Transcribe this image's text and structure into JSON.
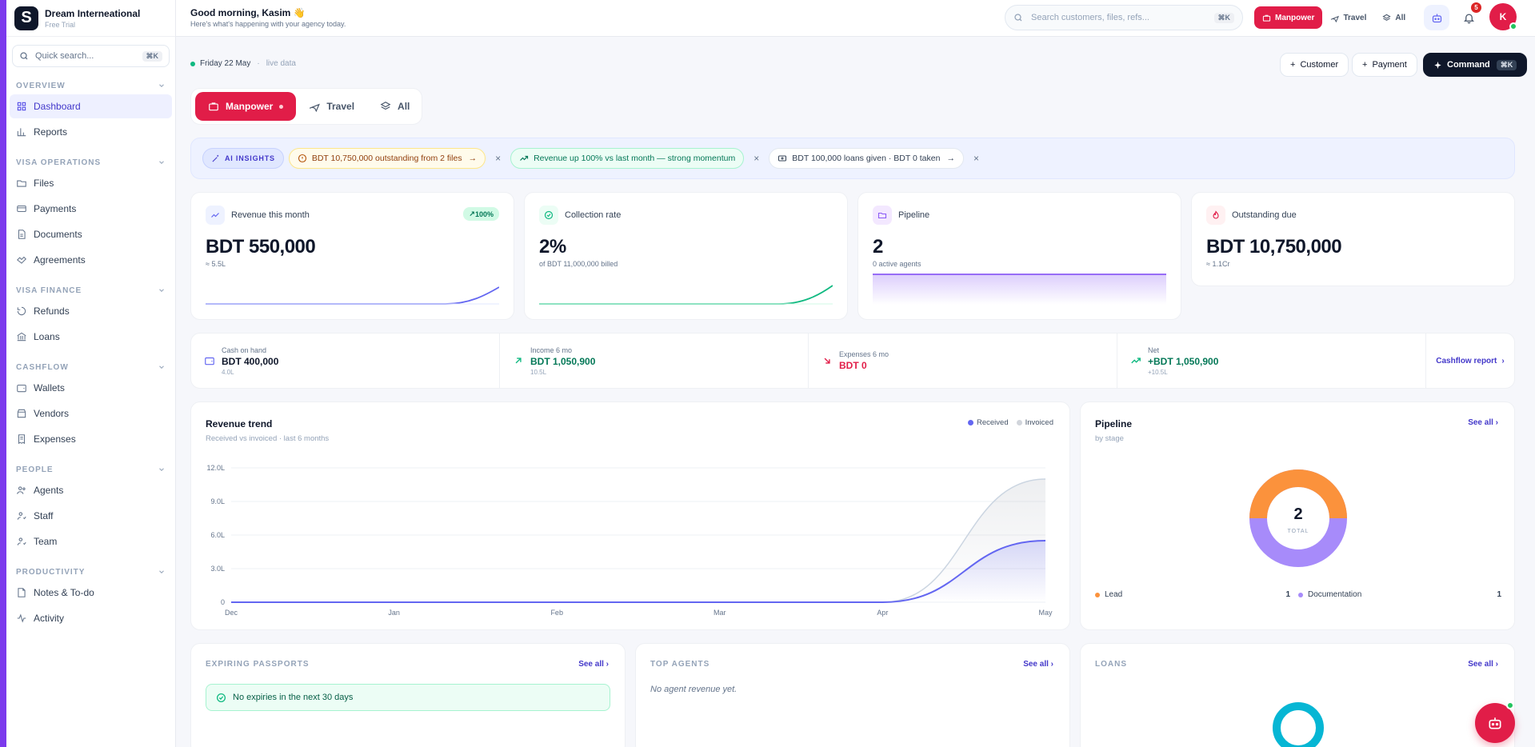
{
  "brand": {
    "name": "Dream Interneational",
    "plan": "Free Trial",
    "logo": "S"
  },
  "sidebar": {
    "search_placeholder": "Quick search...",
    "search_kbd": "⌘K",
    "sections": [
      {
        "title": "OVERVIEW",
        "items": [
          {
            "label": "Dashboard",
            "icon": "grid-icon",
            "active": true
          },
          {
            "label": "Reports",
            "icon": "bar-chart-icon"
          }
        ]
      },
      {
        "title": "VISA OPERATIONS",
        "items": [
          {
            "label": "Files",
            "icon": "folder-icon"
          },
          {
            "label": "Payments",
            "icon": "card-icon"
          },
          {
            "label": "Documents",
            "icon": "document-icon"
          },
          {
            "label": "Agreements",
            "icon": "agreement-icon"
          }
        ]
      },
      {
        "title": "VISA FINANCE",
        "items": [
          {
            "label": "Refunds",
            "icon": "refund-icon"
          },
          {
            "label": "Loans",
            "icon": "bank-icon"
          }
        ]
      },
      {
        "title": "CASHFLOW",
        "items": [
          {
            "label": "Wallets",
            "icon": "wallet-icon"
          },
          {
            "label": "Vendors",
            "icon": "store-icon"
          },
          {
            "label": "Expenses",
            "icon": "receipt-icon"
          }
        ]
      },
      {
        "title": "PEOPLE",
        "items": [
          {
            "label": "Agents",
            "icon": "users-icon"
          },
          {
            "label": "Staff",
            "icon": "user-icon"
          },
          {
            "label": "Team",
            "icon": "user-icon"
          }
        ]
      },
      {
        "title": "PRODUCTIVITY",
        "items": [
          {
            "label": "Notes & To-do",
            "icon": "note-icon"
          },
          {
            "label": "Activity",
            "icon": "activity-icon"
          }
        ]
      }
    ]
  },
  "topbar": {
    "greeting": "Good morning, Kasim 👋",
    "subtitle": "Here's what's happening with your agency today.",
    "search_placeholder": "Search customers, files, refs...",
    "search_kbd": "⌘K",
    "segments": [
      "Manpower",
      "Travel",
      "All"
    ],
    "notifications": "5",
    "avatar_initial": "K"
  },
  "header": {
    "date": "Friday 22 May",
    "live": "live data",
    "actions": {
      "customer": "Customer",
      "payment": "Payment",
      "command": "Command",
      "command_kbd": "⌘K"
    }
  },
  "tabs": [
    "Manpower",
    "Travel",
    "All"
  ],
  "insights": {
    "label": "AI INSIGHTS",
    "items": [
      "BDT 10,750,000 outstanding from 2 files",
      "Revenue up 100% vs last month — strong momentum",
      "BDT 100,000 loans given · BDT 0 taken"
    ]
  },
  "kpis": [
    {
      "label": "Revenue this month",
      "value": "BDT 550,000",
      "sub": "≈ 5.5L",
      "badge": "100%",
      "color": "#6366f1"
    },
    {
      "label": "Collection rate",
      "value": "2%",
      "sub": "of BDT 11,000,000 billed",
      "color": "#10b981"
    },
    {
      "label": "Pipeline",
      "value": "2",
      "sub": "0 active agents",
      "color": "#8b5cf6"
    },
    {
      "label": "Outstanding due",
      "value": "BDT 10,750,000",
      "sub": "≈ 1.1Cr",
      "color": "#e11d48"
    }
  ],
  "cashflow": [
    {
      "label": "Cash on hand",
      "value": "BDT 400,000",
      "sub": "4.0L",
      "color": "#0f172a"
    },
    {
      "label": "Income 6 mo",
      "value": "BDT 1,050,900",
      "sub": "10.5L",
      "color": "#047857"
    },
    {
      "label": "Expenses 6 mo",
      "value": "BDT 0",
      "sub": "",
      "color": "#e11d48"
    },
    {
      "label": "Net",
      "value": "+BDT 1,050,900",
      "sub": "+10.5L",
      "color": "#047857"
    }
  ],
  "cashflow_link": "Cashflow report",
  "revenue": {
    "title": "Revenue trend",
    "subtitle": "Received vs invoiced · last 6 months",
    "legend": [
      "Received",
      "Invoiced"
    ]
  },
  "pipeline": {
    "title": "Pipeline",
    "subtitle": "by stage",
    "see_all": "See all",
    "total": "2",
    "total_label": "TOTAL",
    "stages": [
      {
        "name": "Lead",
        "count": "1",
        "color": "#fb923c"
      },
      {
        "name": "Documentation",
        "count": "1",
        "color": "#a78bfa"
      }
    ]
  },
  "passports": {
    "title": "EXPIRING PASSPORTS",
    "see_all": "See all",
    "empty": "No expiries in the next 30 days"
  },
  "agents": {
    "title": "TOP AGENTS",
    "see_all": "See all",
    "empty": "No agent revenue yet."
  },
  "loans": {
    "title": "LOANS",
    "see_all": "See all"
  },
  "chart_data": {
    "type": "line",
    "categories": [
      "Dec",
      "Jan",
      "Feb",
      "Mar",
      "Apr",
      "May"
    ],
    "series": [
      {
        "name": "Received",
        "values": [
          0,
          0,
          0,
          0,
          0,
          5.5
        ]
      },
      {
        "name": "Invoiced",
        "values": [
          0,
          0,
          0,
          0,
          0,
          11
        ]
      }
    ],
    "yticks": [
      "0",
      "3.0L",
      "6.0L",
      "9.0L",
      "12.0L"
    ],
    "ylim": [
      0,
      12
    ],
    "xlabel": "",
    "ylabel": ""
  }
}
